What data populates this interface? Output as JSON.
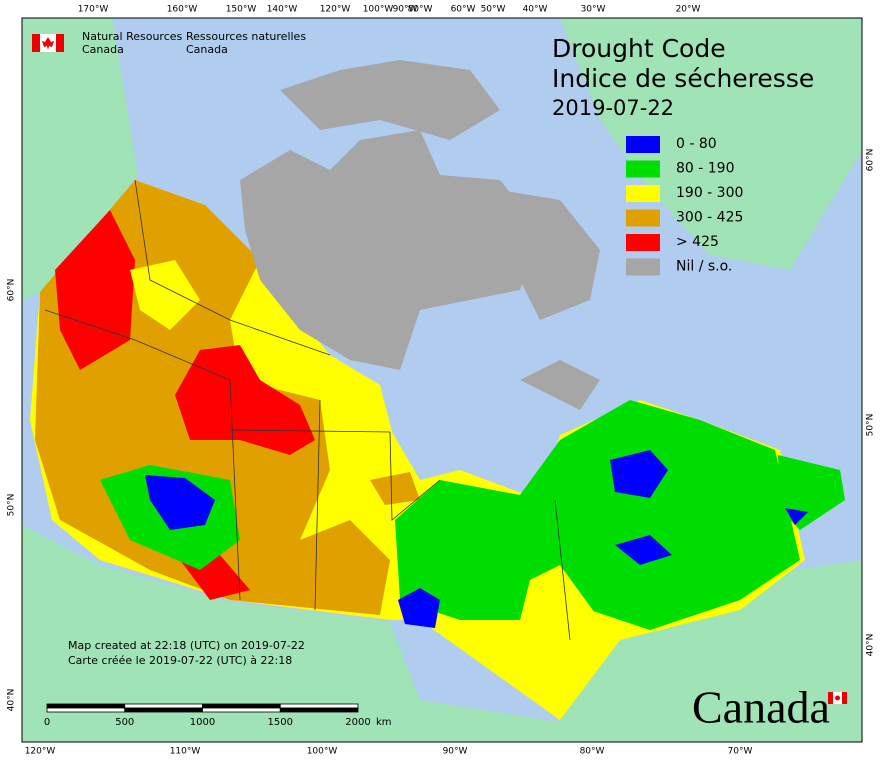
{
  "header": {
    "agency_en": [
      "Natural Resources",
      "Canada"
    ],
    "agency_fr": [
      "Ressources naturelles",
      "Canada"
    ]
  },
  "title": [
    "Drought Code",
    "Indice de sécheresse"
  ],
  "date": "2019-07-22",
  "legend": [
    {
      "label": "0 - 80",
      "color": "#0000ff"
    },
    {
      "label": "80 - 190",
      "color": "#00dd00"
    },
    {
      "label": "190 - 300",
      "color": "#ffff00"
    },
    {
      "label": "300 - 425",
      "color": "#e0a000"
    },
    {
      "label": "> 425",
      "color": "#ff0000"
    },
    {
      "label": "Nil / s.o.",
      "color": "#a6a6a6"
    }
  ],
  "graticule": {
    "top": [
      "170°W",
      "160°W",
      "150°W",
      "140°W",
      "120°W",
      "100°W",
      "90°W",
      "80°W",
      "60°W",
      "50°W",
      "40°W",
      "30°W",
      "20°W"
    ],
    "bottom": [
      "120°W",
      "110°W",
      "100°W",
      "90°W",
      "80°W",
      "70°W"
    ],
    "left": [
      "60°N",
      "50°N",
      "40°N"
    ],
    "right": [
      "60°N",
      "50°N",
      "40°N"
    ]
  },
  "scale_bar": {
    "ticks": [
      "0",
      "500",
      "1000",
      "1500",
      "2000"
    ],
    "unit": "km"
  },
  "credits": [
    "Map created at 22:18 (UTC) on 2019-07-22",
    "Carte créée le 2019-07-22 (UTC) à 22:18"
  ],
  "wordmark": "Canada"
}
